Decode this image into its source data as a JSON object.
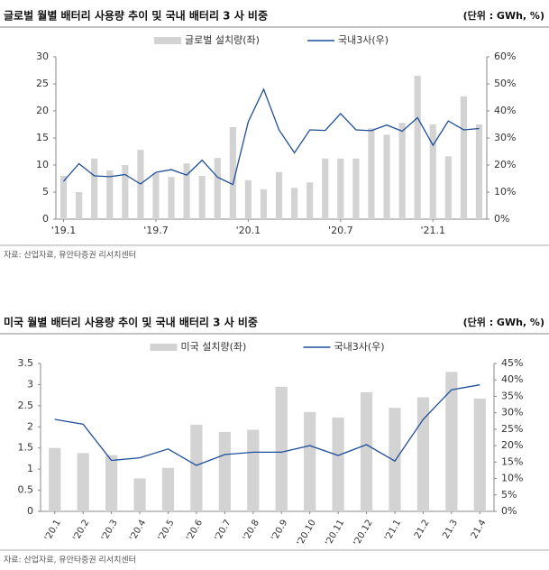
{
  "chart_data": [
    {
      "type": "bar",
      "title": "글로벌 월별 배터리 사용량 추이 및 국내 배터리 3 사 비중",
      "unit": "(단위 : GWh, %)",
      "source": "자료: 산업자료, 유안타증권 리서치센터",
      "categories": [
        "'19.1",
        null,
        null,
        null,
        null,
        null,
        "'19.7",
        null,
        null,
        null,
        null,
        null,
        "'20.1",
        null,
        null,
        null,
        null,
        null,
        "'20.7",
        null,
        null,
        null,
        null,
        null,
        "'21.1",
        null,
        null,
        null
      ],
      "series": [
        {
          "name": "글로벌 설치량(좌)",
          "type": "bar",
          "color": "#d3d3d3",
          "values": [
            8,
            5,
            11.2,
            9,
            10,
            12.8,
            8.5,
            7.8,
            10.3,
            8,
            11.3,
            17,
            7.2,
            5.5,
            8.7,
            5.8,
            6.8,
            11.2,
            11.2,
            11.2,
            16.8,
            15.6,
            17.8,
            26.5,
            17.5,
            11.6,
            22.7,
            17.5
          ]
        },
        {
          "name": "국내3사(우)",
          "type": "line",
          "axis": "y2",
          "color": "#1f4e9a",
          "values": [
            14,
            20.5,
            16,
            15.7,
            16.5,
            13,
            17.3,
            18.3,
            16.3,
            21.8,
            15.5,
            12.8,
            36,
            48,
            33,
            24.5,
            33,
            32.8,
            39,
            33,
            32.7,
            34.8,
            32.5,
            37.5,
            27.3,
            36.3,
            33,
            33.5
          ]
        }
      ],
      "ylim": [
        0,
        30
      ],
      "yticks": [
        0,
        5,
        10,
        15,
        20,
        25,
        30
      ],
      "y2lim": [
        0,
        60
      ],
      "y2ticks": [
        {
          "value": 0,
          "label": "0%"
        },
        {
          "value": 10,
          "label": "10%"
        },
        {
          "value": 20,
          "label": "20%"
        },
        {
          "value": 30,
          "label": "30%"
        },
        {
          "value": 40,
          "label": "40%"
        },
        {
          "value": 50,
          "label": "50%"
        },
        {
          "value": 60,
          "label": "60%"
        }
      ],
      "legend": "top"
    },
    {
      "type": "bar",
      "title": "미국 월별 배터리 사용량 추이 및 국내 배터리 3 사 비중",
      "unit": "(단위 : GWh, %)",
      "source": "자료: 산업자료, 유안타증권 리서치센터",
      "categories": [
        "'20.1",
        "'20.2",
        "'20.3",
        "'20.4",
        "'20.5",
        "'20.6",
        "'20.7",
        "'20.8",
        "'20.9",
        "'20.10",
        "'20.11",
        "'20.12",
        "'21.1",
        "21.2",
        "21.3",
        "21.4"
      ],
      "series": [
        {
          "name": "미국 설치량(좌)",
          "type": "bar",
          "color": "#d3d3d3",
          "values": [
            1.5,
            1.38,
            1.33,
            0.78,
            1.03,
            2.05,
            1.88,
            1.93,
            2.95,
            2.35,
            2.22,
            2.82,
            2.45,
            2.7,
            3.3,
            2.67
          ]
        },
        {
          "name": "국내3사(우)",
          "type": "line",
          "axis": "y2",
          "color": "#1f4e9a",
          "values": [
            28,
            26.5,
            15.5,
            16.3,
            19,
            14,
            17.3,
            18,
            18,
            20,
            17,
            20.3,
            15.3,
            28,
            37,
            38.5
          ]
        }
      ],
      "ylim": [
        0,
        3.5
      ],
      "yticks": [
        0,
        0.5,
        1,
        1.5,
        2,
        2.5,
        3,
        3.5
      ],
      "y2lim": [
        0,
        45
      ],
      "y2ticks": [
        {
          "value": 0,
          "label": "0%"
        },
        {
          "value": 5,
          "label": "5%"
        },
        {
          "value": 10,
          "label": "10%"
        },
        {
          "value": 15,
          "label": "15%"
        },
        {
          "value": 20,
          "label": "20%"
        },
        {
          "value": 25,
          "label": "25%"
        },
        {
          "value": 30,
          "label": "30%"
        },
        {
          "value": 35,
          "label": "35%"
        },
        {
          "value": 40,
          "label": "40%"
        },
        {
          "value": 45,
          "label": "45%"
        }
      ],
      "legend": "top"
    }
  ]
}
